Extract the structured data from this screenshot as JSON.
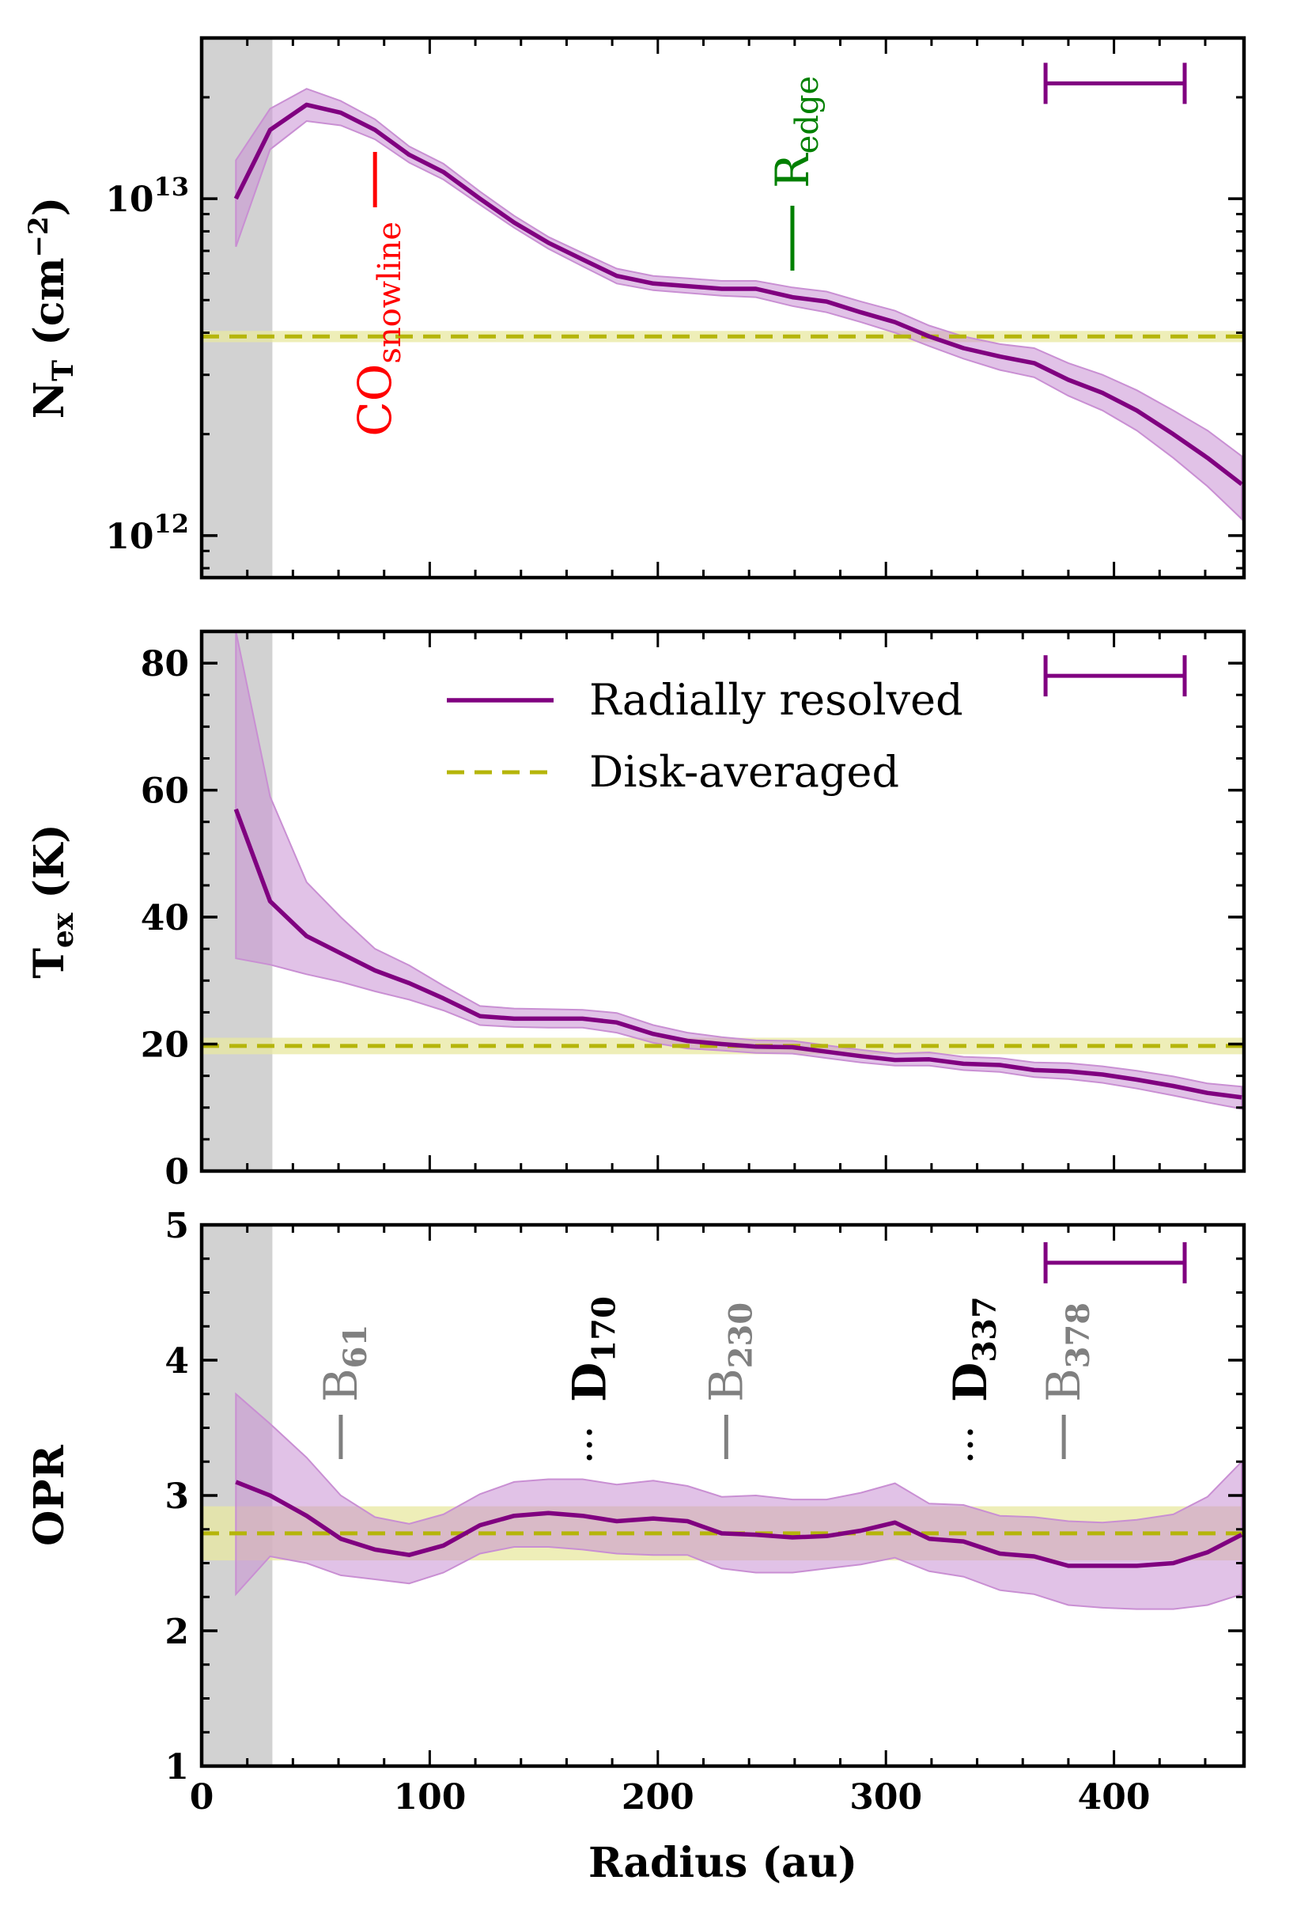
{
  "chart_data": {
    "type": "line",
    "xlabel": "Radius (au)",
    "xlim": [
      0,
      457
    ],
    "xticks": [
      0,
      100,
      200,
      300,
      400
    ],
    "xtick_labels": [
      "0",
      "100",
      "200",
      "300",
      "400"
    ],
    "colors": {
      "resolved": "#800080",
      "resolved_band": "#c98fd3",
      "averaged": "#b5b50a",
      "averaged_band": "#e8e8a0",
      "inner_shade": "#bfbfbf",
      "snowline": "#ff0000",
      "edge": "#008000",
      "ring_bright": "#808080",
      "ring_dark": "#000000"
    },
    "legend": {
      "resolved": "Radially resolved",
      "averaged": "Disk-averaged",
      "placement": "top-center"
    },
    "inner_shade_x": [
      0,
      31
    ],
    "beam_bar": [
      370,
      431
    ],
    "radius": [
      15,
      30,
      46,
      61,
      76,
      91,
      106,
      122,
      137,
      152,
      167,
      182,
      198,
      213,
      228,
      243,
      259,
      274,
      289,
      304,
      319,
      334,
      350,
      365,
      380,
      395,
      410,
      426,
      441,
      456
    ],
    "panels": [
      {
        "id": "column_density",
        "ylabel_main": "N",
        "ylabel_sub": "T",
        "ylabel_unit_pre": " (cm",
        "ylabel_unit_sup": "−2",
        "ylabel_unit_post": ")",
        "yscale": "log",
        "ylim": [
          750000000000.0,
          30000000000000.0
        ],
        "yticks": [
          1000000000000.0,
          10000000000000.0
        ],
        "ytick_base": "10",
        "ytick_exps": [
          "12",
          "13"
        ],
        "values": [
          10000000000000.0,
          16000000000000.0,
          19000000000000.0,
          18000000000000.0,
          16000000000000.0,
          13500000000000.0,
          12000000000000.0,
          10000000000000.0,
          8500000000000.0,
          7400000000000.0,
          6600000000000.0,
          5900000000000.0,
          5600000000000.0,
          5500000000000.0,
          5400000000000.0,
          5400000000000.0,
          5100000000000.0,
          4950000000000.0,
          4600000000000.0,
          4300000000000.0,
          3900000000000.0,
          3600000000000.0,
          3400000000000.0,
          3250000000000.0,
          2900000000000.0,
          2650000000000.0,
          2350000000000.0,
          2000000000000.0,
          1700000000000.0,
          1420000000000.0
        ],
        "lower": [
          7200000000000.0,
          14000000000000.0,
          17000000000000.0,
          16500000000000.0,
          15000000000000.0,
          12800000000000.0,
          11400000000000.0,
          9600000000000.0,
          8200000000000.0,
          7100000000000.0,
          6300000000000.0,
          5600000000000.0,
          5350000000000.0,
          5250000000000.0,
          5150000000000.0,
          5100000000000.0,
          4800000000000.0,
          4600000000000.0,
          4300000000000.0,
          4000000000000.0,
          3650000000000.0,
          3350000000000.0,
          3100000000000.0,
          2950000000000.0,
          2600000000000.0,
          2350000000000.0,
          2050000000000.0,
          1700000000000.0,
          1400000000000.0,
          1120000000000.0
        ],
        "upper": [
          13000000000000.0,
          18500000000000.0,
          21200000000000.0,
          19500000000000.0,
          17200000000000.0,
          14300000000000.0,
          12700000000000.0,
          10500000000000.0,
          8900000000000.0,
          7700000000000.0,
          6900000000000.0,
          6200000000000.0,
          5900000000000.0,
          5800000000000.0,
          5700000000000.0,
          5700000000000.0,
          5450000000000.0,
          5300000000000.0,
          4950000000000.0,
          4650000000000.0,
          4200000000000.0,
          3900000000000.0,
          3700000000000.0,
          3600000000000.0,
          3250000000000.0,
          3000000000000.0,
          2700000000000.0,
          2350000000000.0,
          2050000000000.0,
          1720000000000.0
        ],
        "avg_value": 3900000000000.0,
        "avg_band": [
          3750000000000.0,
          4050000000000.0
        ],
        "beam_y": 22000000000000.0,
        "annotations": [
          {
            "main": "CO",
            "sub": "snowline",
            "x": 76,
            "color_key": "snowline"
          },
          {
            "main": "R",
            "sub": "edge",
            "x": 259,
            "color_key": "edge"
          }
        ]
      },
      {
        "id": "excitation_temperature",
        "ylabel_main": "T",
        "ylabel_sub": "ex",
        "ylabel_unit_pre": " (K)",
        "ylabel_unit_sup": "",
        "ylabel_unit_post": "",
        "yscale": "linear",
        "ylim": [
          0,
          85
        ],
        "yticks": [
          0,
          20,
          40,
          60,
          80
        ],
        "ytick_labels": [
          "0",
          "20",
          "40",
          "60",
          "80"
        ],
        "values": [
          57,
          42.5,
          37,
          34.3,
          31.6,
          29.6,
          27.2,
          24.4,
          24,
          24,
          24,
          23.4,
          21.6,
          20.5,
          20,
          19.6,
          19.5,
          18.8,
          18.1,
          17.5,
          17.6,
          16.9,
          16.7,
          15.9,
          15.7,
          15.2,
          14.4,
          13.4,
          12.3,
          11.6
        ],
        "lower": [
          33.5,
          32.5,
          31,
          29.8,
          28.3,
          27,
          25.3,
          23,
          22.7,
          22.6,
          22.6,
          21.8,
          20.2,
          19.3,
          19,
          18.6,
          18.5,
          17.8,
          17.1,
          16.6,
          16.6,
          15.9,
          15.6,
          14.8,
          14.5,
          13.9,
          13,
          11.9,
          10.8,
          9.8
        ],
        "upper": [
          85,
          59,
          45.5,
          40,
          35,
          32.4,
          29.2,
          26,
          25.6,
          25.5,
          25.4,
          24.9,
          23,
          21.8,
          21.1,
          20.6,
          20.5,
          19.8,
          19.1,
          18.5,
          18.7,
          18,
          17.8,
          17.1,
          17,
          16.5,
          15.8,
          14.9,
          13.8,
          13.3
        ],
        "avg_value": 19.7,
        "avg_band": [
          18.4,
          21.0
        ],
        "beam_y": 78
      },
      {
        "id": "ortho_para_ratio",
        "ylabel_main": "OPR",
        "ylabel_sub": "",
        "ylabel_unit_pre": "",
        "ylabel_unit_sup": "",
        "ylabel_unit_post": "",
        "yscale": "linear",
        "ylim": [
          1,
          5
        ],
        "yticks": [
          1,
          2,
          3,
          4,
          5
        ],
        "ytick_labels": [
          "1",
          "2",
          "3",
          "4",
          "5"
        ],
        "values": [
          3.1,
          3.0,
          2.85,
          2.68,
          2.6,
          2.56,
          2.63,
          2.78,
          2.85,
          2.87,
          2.85,
          2.81,
          2.83,
          2.81,
          2.72,
          2.71,
          2.69,
          2.7,
          2.74,
          2.8,
          2.68,
          2.66,
          2.57,
          2.55,
          2.48,
          2.48,
          2.48,
          2.5,
          2.58,
          2.71
        ],
        "lower": [
          2.27,
          2.55,
          2.5,
          2.41,
          2.38,
          2.35,
          2.43,
          2.57,
          2.62,
          2.62,
          2.6,
          2.57,
          2.56,
          2.56,
          2.46,
          2.43,
          2.43,
          2.46,
          2.49,
          2.54,
          2.44,
          2.4,
          2.3,
          2.27,
          2.19,
          2.17,
          2.16,
          2.16,
          2.19,
          2.27
        ],
        "upper": [
          3.75,
          3.53,
          3.28,
          3.0,
          2.84,
          2.79,
          2.86,
          3.01,
          3.1,
          3.12,
          3.12,
          3.08,
          3.11,
          3.07,
          2.99,
          3.0,
          2.97,
          2.97,
          3.02,
          3.09,
          2.94,
          2.93,
          2.85,
          2.84,
          2.81,
          2.8,
          2.82,
          2.86,
          2.99,
          3.25
        ],
        "avg_value": 2.72,
        "avg_band": [
          2.52,
          2.92
        ],
        "beam_y": 4.72,
        "annotations": [
          {
            "main": "B",
            "sub": "61",
            "x": 61,
            "style": "bright"
          },
          {
            "main": "D",
            "sub": "170",
            "x": 170,
            "style": "dark"
          },
          {
            "main": "B",
            "sub": "230",
            "x": 230,
            "style": "bright"
          },
          {
            "main": "D",
            "sub": "337",
            "x": 337,
            "style": "dark"
          },
          {
            "main": "B",
            "sub": "378",
            "x": 378,
            "style": "bright"
          }
        ]
      }
    ]
  }
}
